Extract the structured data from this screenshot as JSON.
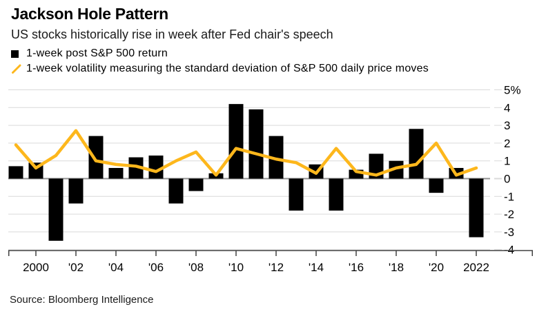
{
  "header": {
    "title": "Jackson Hole Pattern",
    "subtitle": "US stocks historically rise in week after Fed chair's speech"
  },
  "legend": {
    "items": [
      {
        "label": "1-week post S&P 500 return",
        "swatch": "black-square"
      },
      {
        "label": "1-week volatility measuring the standard deviation of S&P 500 daily price moves",
        "swatch": "yellow-slash"
      }
    ]
  },
  "footer": {
    "source": "Source: Bloomberg Intelligence"
  },
  "chart_data": {
    "type": "bar",
    "combo": "bars with overlaid line",
    "title": "Jackson Hole Pattern",
    "subtitle": "US stocks historically rise in week after Fed chair's speech",
    "xlabel": "",
    "ylabel": "",
    "unit": "%",
    "categories": [
      1999,
      2000,
      2001,
      2002,
      2003,
      2004,
      2005,
      2006,
      2007,
      2008,
      2009,
      2010,
      2011,
      2012,
      2013,
      2014,
      2015,
      2016,
      2017,
      2018,
      2019,
      2020,
      2021,
      2022
    ],
    "series": [
      {
        "name": "1-week post S&P 500 return",
        "kind": "bar",
        "color": "#000000",
        "values": [
          0.7,
          0.9,
          -3.5,
          -1.4,
          2.4,
          0.6,
          1.2,
          1.3,
          -1.4,
          -0.7,
          0.3,
          4.2,
          3.9,
          2.4,
          -1.8,
          0.8,
          -1.8,
          0.5,
          1.4,
          1.0,
          2.8,
          -0.8,
          0.6,
          -3.3
        ]
      },
      {
        "name": "1-week volatility measuring the standard deviation of S&P 500 daily price moves",
        "kind": "line",
        "color": "#FDB71C",
        "values": [
          1.9,
          0.6,
          1.3,
          2.7,
          1.0,
          0.8,
          0.7,
          0.4,
          1.0,
          1.5,
          0.2,
          1.7,
          1.4,
          1.1,
          0.9,
          0.3,
          1.7,
          0.4,
          0.2,
          0.6,
          0.8,
          2.0,
          0.2,
          0.6
        ]
      }
    ],
    "ylim": [
      -4,
      5
    ],
    "yticks": [
      {
        "value": 5,
        "label": "5%"
      },
      {
        "value": 4,
        "label": "4"
      },
      {
        "value": 3,
        "label": "3"
      },
      {
        "value": 2,
        "label": "2"
      },
      {
        "value": 1,
        "label": "1"
      },
      {
        "value": 0,
        "label": "0"
      },
      {
        "value": -1,
        "label": "-1"
      },
      {
        "value": -2,
        "label": "-2"
      },
      {
        "value": -3,
        "label": "-3"
      },
      {
        "value": -4,
        "label": "-4"
      }
    ],
    "xticks": [
      {
        "year": 2000,
        "label": "2000"
      },
      {
        "year": 2002,
        "label": "'02"
      },
      {
        "year": 2004,
        "label": "'04"
      },
      {
        "year": 2006,
        "label": "'06"
      },
      {
        "year": 2008,
        "label": "'08"
      },
      {
        "year": 2010,
        "label": "'10"
      },
      {
        "year": 2012,
        "label": "'12"
      },
      {
        "year": 2014,
        "label": "'14"
      },
      {
        "year": 2016,
        "label": "'16"
      },
      {
        "year": 2018,
        "label": "'18"
      },
      {
        "year": 2020,
        "label": "'20"
      },
      {
        "year": 2022,
        "label": "2022"
      }
    ],
    "grid": "horizontal",
    "legend_position": "top-left",
    "y_axis_side": "right",
    "axis_colors": {
      "gridline": "#D9D9D9",
      "zero_line": "#8F8F8F",
      "axis_line": "#404040",
      "tick_label": "#000000"
    }
  }
}
